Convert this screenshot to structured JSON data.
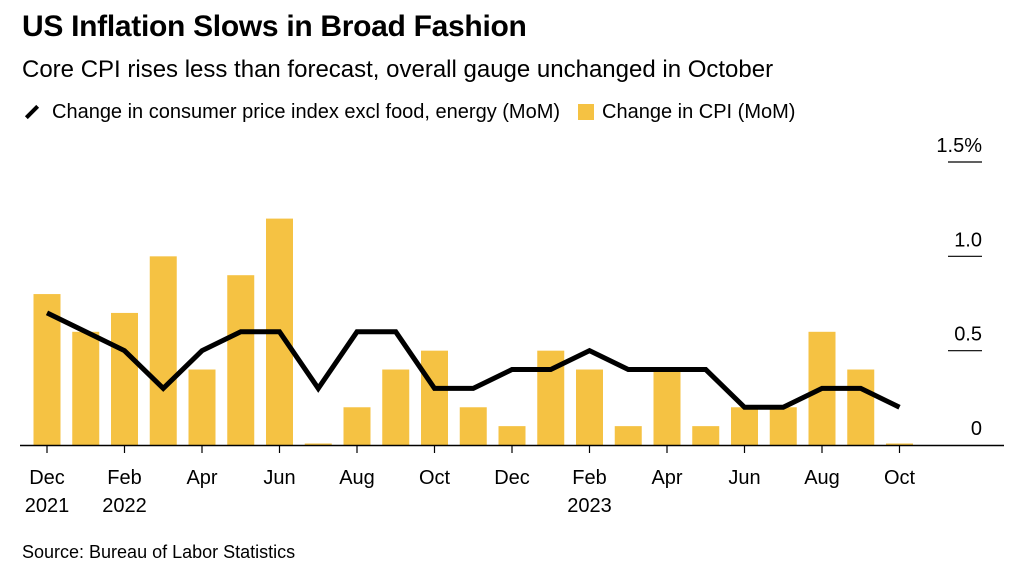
{
  "header": {
    "title": "US Inflation Slows in Broad Fashion",
    "subtitle": "Core CPI rises less than forecast, overall gauge unchanged in October"
  },
  "legend": {
    "line_label": "Change in consumer price index excl food, energy (MoM)",
    "bar_label": "Change in CPI (MoM)"
  },
  "colors": {
    "bar": "#F5C243",
    "line": "#000000",
    "axis": "#000000"
  },
  "source": "Source: Bureau of Labor Statistics",
  "chart_data": {
    "type": "bar+line",
    "categories": [
      "Dec 2021",
      "Jan 2022",
      "Feb 2022",
      "Mar 2022",
      "Apr 2022",
      "May 2022",
      "Jun 2022",
      "Jul 2022",
      "Aug 2022",
      "Sep 2022",
      "Oct 2022",
      "Nov 2022",
      "Dec 2022",
      "Jan 2023",
      "Feb 2023",
      "Mar 2023",
      "Apr 2023",
      "May 2023",
      "Jun 2023",
      "Jul 2023",
      "Aug 2023",
      "Sep 2023",
      "Oct 2023"
    ],
    "series": [
      {
        "name": "Change in CPI (MoM)",
        "kind": "bar",
        "values": [
          0.8,
          0.6,
          0.7,
          1.0,
          0.4,
          0.9,
          1.2,
          0.0,
          0.2,
          0.4,
          0.5,
          0.2,
          0.1,
          0.5,
          0.4,
          0.1,
          0.4,
          0.1,
          0.2,
          0.2,
          0.6,
          0.4,
          0.0
        ]
      },
      {
        "name": "Change in consumer price index excl food, energy (MoM)",
        "kind": "line",
        "values": [
          0.7,
          0.6,
          0.5,
          0.3,
          0.5,
          0.6,
          0.6,
          0.3,
          0.6,
          0.6,
          0.3,
          0.3,
          0.4,
          0.4,
          0.5,
          0.4,
          0.4,
          0.4,
          0.2,
          0.2,
          0.3,
          0.3,
          0.2
        ]
      }
    ],
    "x_tick_labels": [
      {
        "index": 0,
        "line1": "Dec",
        "line2": "2021"
      },
      {
        "index": 2,
        "line1": "Feb",
        "line2": "2022"
      },
      {
        "index": 4,
        "line1": "Apr",
        "line2": ""
      },
      {
        "index": 6,
        "line1": "Jun",
        "line2": ""
      },
      {
        "index": 8,
        "line1": "Aug",
        "line2": ""
      },
      {
        "index": 10,
        "line1": "Oct",
        "line2": ""
      },
      {
        "index": 12,
        "line1": "Dec",
        "line2": ""
      },
      {
        "index": 14,
        "line1": "Feb",
        "line2": "2023"
      },
      {
        "index": 16,
        "line1": "Apr",
        "line2": ""
      },
      {
        "index": 18,
        "line1": "Jun",
        "line2": ""
      },
      {
        "index": 20,
        "line1": "Aug",
        "line2": ""
      },
      {
        "index": 22,
        "line1": "Oct",
        "line2": ""
      }
    ],
    "y_ticks": [
      {
        "value": 0,
        "label": "0"
      },
      {
        "value": 0.5,
        "label": "0.5"
      },
      {
        "value": 1.0,
        "label": "1.0"
      },
      {
        "value": 1.5,
        "label": "1.5%"
      }
    ],
    "ylim": [
      0,
      1.5
    ],
    "y_axis_side": "right",
    "grid": false,
    "legend_position": "top-left"
  }
}
